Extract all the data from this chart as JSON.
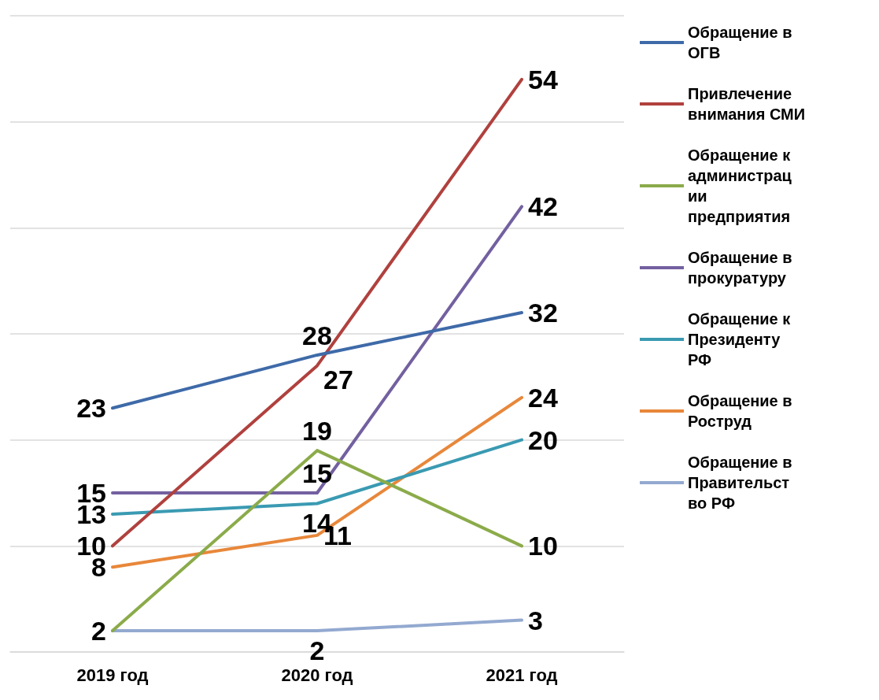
{
  "chart_data": {
    "type": "line",
    "categories": [
      "2019 год",
      "2020 год",
      "2021 год"
    ],
    "series": [
      {
        "name": "Обращение в ОГВ",
        "color": "#3e6aa8",
        "values": [
          23,
          28,
          32
        ],
        "value_labels": [
          "23",
          "28",
          "32"
        ]
      },
      {
        "name": "Привлечение внимания СМИ",
        "color": "#b0413e",
        "values": [
          10,
          27,
          54
        ],
        "value_labels": [
          "10",
          "27",
          "54"
        ]
      },
      {
        "name": "Обращение к администрации предприятия",
        "color": "#8bab4a",
        "values": [
          2,
          19,
          10
        ],
        "value_labels": [
          null,
          "19",
          "10"
        ]
      },
      {
        "name": "Обращение в прокуратуру",
        "color": "#7360a0",
        "values": [
          15,
          15,
          42
        ],
        "value_labels": [
          "15",
          "15",
          "42"
        ]
      },
      {
        "name": "Обращение к Президенту РФ",
        "color": "#3a9ab2",
        "values": [
          13,
          14,
          20
        ],
        "value_labels": [
          "13",
          "14",
          "20"
        ]
      },
      {
        "name": "Обращение в Роструд",
        "color": "#e8873a",
        "values": [
          8,
          11,
          24
        ],
        "value_labels": [
          "8",
          "11",
          "24"
        ]
      },
      {
        "name": "Обращение в Правительство РФ",
        "color": "#93a9d0",
        "values": [
          2,
          2,
          3
        ],
        "value_labels": [
          "2",
          "2",
          "3"
        ]
      }
    ],
    "tick_labels": "x",
    "grid": "y",
    "legend": "right",
    "marker": "none",
    "line_style": "solid"
  }
}
